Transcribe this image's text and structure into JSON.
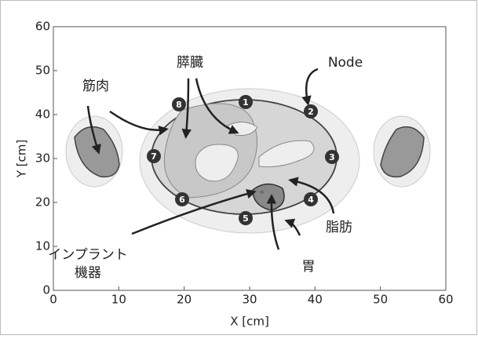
{
  "axes": {
    "xlabel": "X [cm]",
    "ylabel": "Y [cm]",
    "xlim": [
      0,
      60
    ],
    "ylim": [
      0,
      60
    ],
    "xticks": [
      0,
      10,
      20,
      30,
      40,
      50,
      60
    ],
    "yticks": [
      0,
      10,
      20,
      30,
      40,
      50,
      60
    ]
  },
  "labels": {
    "muscle": "筋肉",
    "pancreas": "膵臓",
    "node": "Node",
    "fat": "脂肪",
    "stomach": "胃",
    "implant_line1": "インプラント",
    "implant_line2": "機器"
  },
  "nodes": [
    "1",
    "2",
    "3",
    "4",
    "5",
    "6",
    "7",
    "8"
  ]
}
